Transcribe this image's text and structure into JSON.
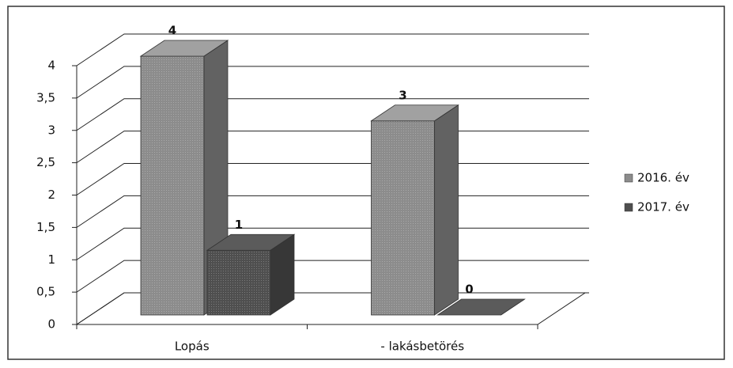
{
  "chart_data": {
    "type": "bar3d",
    "categories": [
      "Lopás",
      "- lakásbetörés"
    ],
    "series": [
      {
        "name": "2016. év",
        "color": "#8c8c8c",
        "values": [
          4,
          3
        ]
      },
      {
        "name": "2017. év",
        "color": "#4f4f4f",
        "values": [
          1,
          0
        ]
      }
    ],
    "ylim": [
      0,
      4
    ],
    "yticks": [
      0,
      {
        "value": 0.5,
        "label": "0,5"
      },
      1,
      {
        "value": 1.5,
        "label": "1,5"
      },
      2,
      {
        "value": 2.5,
        "label": "2,5"
      },
      3,
      {
        "value": 3.5,
        "label": "3,5"
      },
      4
    ],
    "grid": true,
    "legend": "right"
  }
}
